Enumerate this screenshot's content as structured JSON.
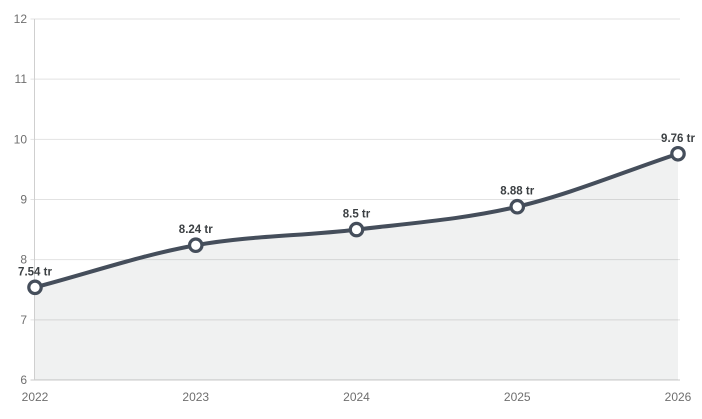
{
  "page": {
    "background": "#ffffff"
  },
  "colors": {
    "series_line": "#454e5b",
    "point_fill": "#ffffff",
    "area_fill": "rgba(63,71,82,0.08)",
    "gridline": "#e2e2e2",
    "baseline": "#c9c9c9",
    "axis_line": "#cfcfcf",
    "tick_label": "#6f6f6f",
    "value_label": "#3c4043"
  },
  "chart_data": {
    "type": "line",
    "title": "",
    "xlabel": "",
    "ylabel": "",
    "categories": [
      "2022",
      "2023",
      "2024",
      "2025",
      "2026"
    ],
    "values": [
      7.54,
      8.24,
      8.5,
      8.88,
      9.76
    ],
    "point_labels": [
      "7.54 tr",
      "8.24 tr",
      "8.5 tr",
      "8.88 tr",
      "9.76 tr"
    ],
    "unit_suffix": "tr",
    "ylim": [
      6,
      12
    ],
    "y_ticks": [
      6,
      7,
      8,
      9,
      10,
      11,
      12
    ],
    "grid": "horizontal",
    "legend_position": "none",
    "area": true,
    "smooth": true,
    "point_label_position": "above"
  }
}
